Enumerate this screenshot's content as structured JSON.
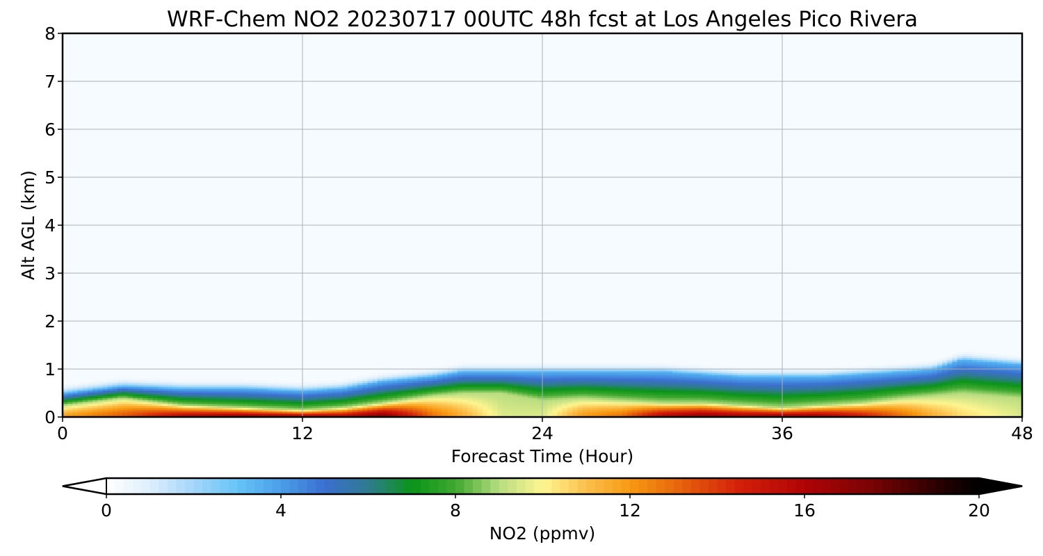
{
  "chart_data": {
    "type": "heatmap",
    "title": "WRF-Chem NO2  20230717 00UTC 48h fcst at Los Angeles Pico Rivera",
    "xlabel": "Forecast Time (Hour)",
    "ylabel": "Alt AGL (km)",
    "xlim": [
      0,
      48
    ],
    "ylim": [
      0,
      8
    ],
    "xticks": [
      0,
      12,
      24,
      36,
      48
    ],
    "yticks": [
      0,
      1,
      2,
      3,
      4,
      5,
      6,
      7,
      8
    ],
    "grid": true,
    "colorbar": {
      "label": "NO2  (ppmv)",
      "range": [
        0,
        20
      ],
      "ticks": [
        0,
        4,
        8,
        12,
        16,
        20
      ],
      "extend": "both",
      "stops": [
        {
          "v": 0,
          "c": "#ffffff"
        },
        {
          "v": 1,
          "c": "#ddeefc"
        },
        {
          "v": 2,
          "c": "#a3d6fa"
        },
        {
          "v": 3,
          "c": "#66c4f7"
        },
        {
          "v": 4,
          "c": "#4a9eea"
        },
        {
          "v": 5,
          "c": "#3b6fd0"
        },
        {
          "v": 6,
          "c": "#2f7b90"
        },
        {
          "v": 7,
          "c": "#0a9418"
        },
        {
          "v": 8,
          "c": "#3fa830"
        },
        {
          "v": 9,
          "c": "#b7dd80"
        },
        {
          "v": 10,
          "c": "#fef591"
        },
        {
          "v": 11,
          "c": "#fbc04c"
        },
        {
          "v": 12,
          "c": "#f79912"
        },
        {
          "v": 13,
          "c": "#e86a0c"
        },
        {
          "v": 14.5,
          "c": "#d3200a"
        },
        {
          "v": 16,
          "c": "#b00406"
        },
        {
          "v": 17.5,
          "c": "#7a0304"
        },
        {
          "v": 19,
          "c": "#2d0000"
        },
        {
          "v": 20,
          "c": "#000000"
        }
      ]
    },
    "background_color": "#f6fbff",
    "profile_hours": [
      0,
      2,
      3,
      6,
      9,
      12,
      14,
      16,
      18.5,
      20,
      22,
      24,
      26,
      28,
      30,
      32,
      34,
      36,
      38,
      40,
      42,
      43.5,
      45,
      46.5,
      48
    ],
    "no2_max": [
      12,
      13,
      13.5,
      16,
      17,
      16.5,
      16,
      17.5,
      13,
      11.5,
      9.5,
      9.5,
      12,
      13,
      16,
      17,
      16.5,
      17,
      16.5,
      15,
      13,
      11.5,
      10.5,
      10,
      9.5
    ],
    "mixing_height_km": [
      0.5,
      0.6,
      0.65,
      0.6,
      0.6,
      0.55,
      0.6,
      0.75,
      0.85,
      0.95,
      0.95,
      0.95,
      0.95,
      0.95,
      0.95,
      0.9,
      0.85,
      0.85,
      0.85,
      0.9,
      0.95,
      1.0,
      1.2,
      1.15,
      1.1
    ],
    "surface_layer_km": [
      0.25,
      0.35,
      0.4,
      0.25,
      0.2,
      0.15,
      0.2,
      0.3,
      0.45,
      0.5,
      0.5,
      0.35,
      0.4,
      0.35,
      0.3,
      0.3,
      0.25,
      0.2,
      0.25,
      0.3,
      0.4,
      0.45,
      0.5,
      0.45,
      0.4
    ]
  }
}
